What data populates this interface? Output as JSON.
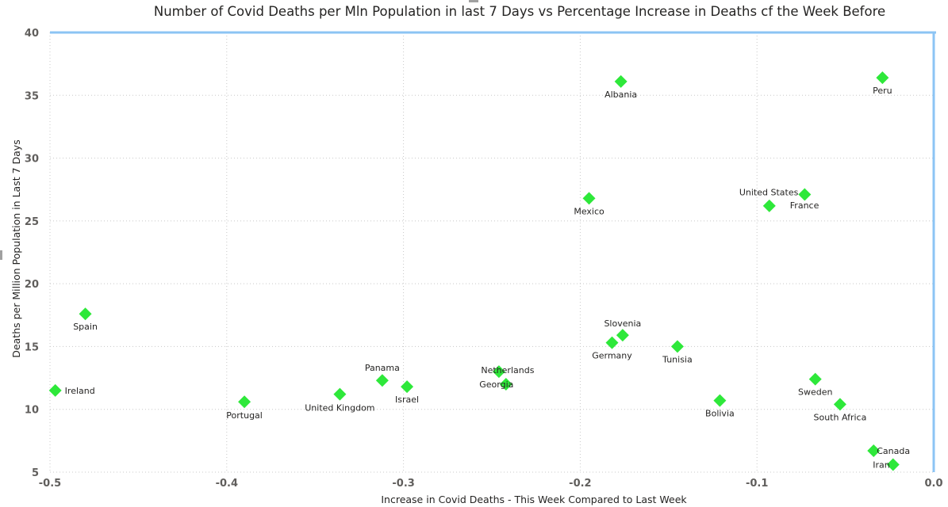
{
  "chart_data": {
    "type": "scatter",
    "title": "Number of Covid Deaths per Mln Population in last 7 Days vs Percentage Increase in Deaths cf the Week Before",
    "xlabel": "Increase in Covid Deaths - This Week Compared to Last Week",
    "ylabel": "Deaths per Million Population in Last 7 Days",
    "xlim": [
      -0.5,
      0.0
    ],
    "ylim": [
      5,
      40
    ],
    "x_ticks": [
      "-0.5",
      "-0.4",
      "-0.3",
      "-0.2",
      "-0.1",
      "0.0"
    ],
    "y_ticks": [
      "5",
      "10",
      "15",
      "20",
      "25",
      "30",
      "35",
      "40"
    ],
    "grid": true,
    "marker": "diamond",
    "marker_color": "#2ee83a",
    "reference_line_color": "#8cc4f4",
    "reference_lines": {
      "y": 40,
      "x": 0.0
    },
    "points": [
      {
        "label": "Albania",
        "x": -0.177,
        "y": 36.1
      },
      {
        "label": "Peru",
        "x": -0.029,
        "y": 36.4
      },
      {
        "label": "United States",
        "x": -0.073,
        "y": 27.1
      },
      {
        "label": "France",
        "x": -0.093,
        "y": 26.2
      },
      {
        "label": "Mexico",
        "x": -0.195,
        "y": 26.8
      },
      {
        "label": "Spain",
        "x": -0.48,
        "y": 17.6
      },
      {
        "label": "Slovenia",
        "x": -0.176,
        "y": 15.9
      },
      {
        "label": "Germany",
        "x": -0.182,
        "y": 15.3
      },
      {
        "label": "Tunisia",
        "x": -0.145,
        "y": 15.0
      },
      {
        "label": "Netherlands",
        "x": -0.246,
        "y": 13.0
      },
      {
        "label": "Georgia",
        "x": -0.242,
        "y": 12.0
      },
      {
        "label": "Panama",
        "x": -0.312,
        "y": 12.3
      },
      {
        "label": "Israel",
        "x": -0.298,
        "y": 11.8
      },
      {
        "label": "Ireland",
        "x": -0.497,
        "y": 11.5
      },
      {
        "label": "United Kingdom",
        "x": -0.336,
        "y": 11.2
      },
      {
        "label": "Portugal",
        "x": -0.39,
        "y": 10.6
      },
      {
        "label": "Bolivia",
        "x": -0.121,
        "y": 10.7
      },
      {
        "label": "Sweden",
        "x": -0.067,
        "y": 12.4
      },
      {
        "label": "South Africa",
        "x": -0.053,
        "y": 10.4
      },
      {
        "label": "Canada",
        "x": -0.034,
        "y": 6.7
      },
      {
        "label": "Iran",
        "x": -0.023,
        "y": 5.6
      }
    ]
  }
}
